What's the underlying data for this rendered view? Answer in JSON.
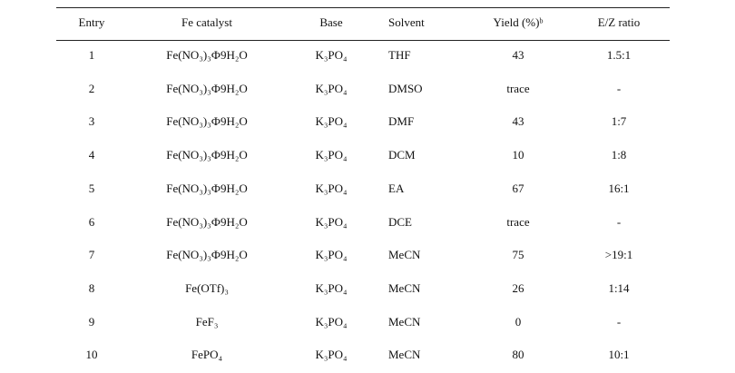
{
  "table": {
    "header": [
      "Entry",
      "Fe catalyst",
      "Base",
      "Solvent",
      "Yield (%)ᵇ",
      "E/Z ratio"
    ],
    "rows": [
      [
        "1",
        "Fe(NO₃)₃Ф9H₂O",
        "K₃PO₄",
        "THF",
        "43",
        "1.5:1"
      ],
      [
        "2",
        "Fe(NO₃)₃Ф9H₂O",
        "K₃PO₄",
        "DMSO",
        "trace",
        "-"
      ],
      [
        "3",
        "Fe(NO₃)₃Ф9H₂O",
        "K₃PO₄",
        "DMF",
        "43",
        "1:7"
      ],
      [
        "4",
        "Fe(NO₃)₃Ф9H₂O",
        "K₃PO₄",
        "DCM",
        "10",
        "1:8"
      ],
      [
        "5",
        "Fe(NO₃)₃Ф9H₂O",
        "K₃PO₄",
        "EA",
        "67",
        "16:1"
      ],
      [
        "6",
        "Fe(NO₃)₃Ф9H₂O",
        "K₃PO₄",
        "DCE",
        "trace",
        "-"
      ],
      [
        "7",
        "Fe(NO₃)₃Ф9H₂O",
        "K₃PO₄",
        "MeCN",
        "75",
        ">19:1"
      ],
      [
        "8",
        "Fe(OTf)₃",
        "K₃PO₄",
        "MeCN",
        "26",
        "1:14"
      ],
      [
        "9",
        "FeF₃",
        "K₃PO₄",
        "MeCN",
        "0",
        "-"
      ],
      [
        "10",
        "FePO₄",
        "K₃PO₄",
        "MeCN",
        "80",
        "10:1"
      ]
    ]
  }
}
